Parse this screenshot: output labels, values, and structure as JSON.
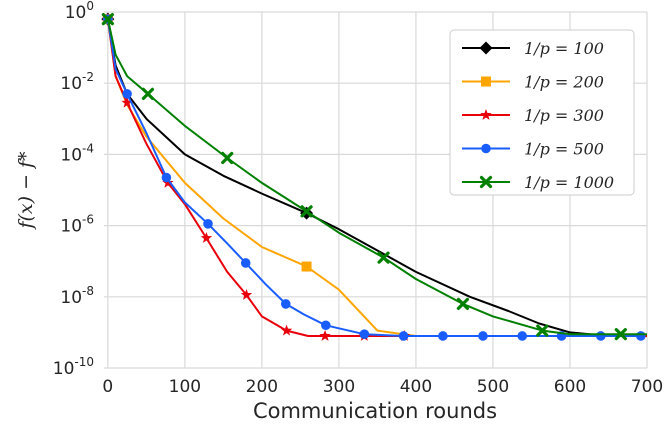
{
  "chart_data": {
    "type": "line",
    "xlabel": "Communication rounds",
    "ylabel": "f(x) − f*",
    "xlim": [
      -5,
      700
    ],
    "ylim_log10": [
      -10,
      0
    ],
    "y_scale": "log",
    "grid": true,
    "legend_position": "top-right",
    "x_ticks": [
      {
        "value": 0,
        "label": "0"
      },
      {
        "value": 100,
        "label": "100"
      },
      {
        "value": 200,
        "label": "200"
      },
      {
        "value": 300,
        "label": "300"
      },
      {
        "value": 400,
        "label": "400"
      },
      {
        "value": 500,
        "label": "500"
      },
      {
        "value": 600,
        "label": "600"
      },
      {
        "value": 700,
        "label": "700"
      }
    ],
    "y_ticks": [
      {
        "exp": 0,
        "base": "10",
        "sup": "0"
      },
      {
        "exp": -2,
        "base": "10",
        "sup": "-2"
      },
      {
        "exp": -4,
        "base": "10",
        "sup": "-4"
      },
      {
        "exp": -6,
        "base": "10",
        "sup": "-6"
      },
      {
        "exp": -8,
        "base": "10",
        "sup": "-8"
      },
      {
        "exp": -10,
        "base": "10",
        "sup": "-10"
      }
    ],
    "series": [
      {
        "name": "1/p = 100",
        "color": "#000000",
        "marker": "diamond",
        "x": [
          0,
          10,
          25,
          50,
          100,
          150,
          200,
          258,
          300,
          350,
          400,
          470,
          520,
          560,
          600,
          650,
          700
        ],
        "log10_y": [
          -0.2,
          -1.5,
          -2.3,
          -3.0,
          -4.0,
          -4.6,
          -5.1,
          -5.65,
          -6.1,
          -6.7,
          -7.3,
          -8.0,
          -8.4,
          -8.75,
          -9.0,
          -9.1,
          -9.1
        ],
        "marker_x": [
          0,
          258
        ],
        "marker_log10_y": [
          -0.2,
          -5.65
        ]
      },
      {
        "name": "1/p = 200",
        "color": "#ffa500",
        "marker": "square",
        "x": [
          0,
          10,
          25,
          50,
          100,
          150,
          200,
          258,
          300,
          350,
          400,
          450,
          500,
          700
        ],
        "log10_y": [
          -0.2,
          -1.8,
          -2.6,
          -3.5,
          -4.8,
          -5.8,
          -6.6,
          -7.15,
          -7.8,
          -8.95,
          -9.1,
          -9.1,
          -9.1,
          -9.1
        ],
        "marker_x": [
          0,
          258
        ],
        "marker_log10_y": [
          -0.2,
          -7.15
        ]
      },
      {
        "name": "1/p = 300",
        "color": "#e8000b",
        "marker": "star",
        "x": [
          0,
          10,
          25,
          50,
          78,
          100,
          128,
          155,
          180,
          200,
          232,
          260,
          282,
          333,
          385,
          700
        ],
        "log10_y": [
          -0.2,
          -1.8,
          -2.55,
          -3.7,
          -4.8,
          -5.4,
          -6.35,
          -7.3,
          -7.95,
          -8.55,
          -8.95,
          -9.1,
          -9.1,
          -9.1,
          -9.1,
          -9.1
        ],
        "marker_x": [
          0,
          25,
          78,
          128,
          180,
          232,
          282,
          333,
          385
        ],
        "marker_log10_y": [
          -0.2,
          -2.55,
          -4.8,
          -6.35,
          -7.95,
          -8.95,
          -9.1,
          -9.1,
          -9.1
        ]
      },
      {
        "name": "1/p = 500",
        "color": "#1a5dff",
        "marker": "circle",
        "x": [
          0,
          10,
          25,
          50,
          76,
          100,
          130,
          155,
          179,
          205,
          231,
          255,
          283,
          333,
          384,
          435,
          487,
          538,
          589,
          640,
          692
        ],
        "log10_y": [
          -0.2,
          -1.6,
          -2.3,
          -3.4,
          -4.65,
          -5.35,
          -5.95,
          -6.5,
          -7.05,
          -7.65,
          -8.2,
          -8.5,
          -8.8,
          -9.05,
          -9.1,
          -9.1,
          -9.1,
          -9.1,
          -9.1,
          -9.1,
          -9.1
        ],
        "marker_x": [
          0,
          25,
          76,
          130,
          179,
          231,
          283,
          333,
          384,
          435,
          487,
          538,
          589,
          640,
          692
        ],
        "marker_log10_y": [
          -0.2,
          -2.3,
          -4.65,
          -5.95,
          -7.05,
          -8.2,
          -8.8,
          -9.05,
          -9.1,
          -9.1,
          -9.1,
          -9.1,
          -9.1,
          -9.1,
          -9.1
        ]
      },
      {
        "name": "1/p = 1000",
        "color": "#008000",
        "marker": "x",
        "x": [
          0,
          10,
          25,
          52,
          100,
          155,
          200,
          258,
          300,
          358,
          400,
          461,
          500,
          564,
          600,
          666,
          700
        ],
        "log10_y": [
          -0.2,
          -1.2,
          -1.8,
          -2.3,
          -3.2,
          -4.1,
          -4.8,
          -5.6,
          -6.2,
          -6.9,
          -7.5,
          -8.2,
          -8.55,
          -8.95,
          -9.05,
          -9.05,
          -9.05
        ],
        "marker_x": [
          0,
          52,
          155,
          258,
          358,
          461,
          564,
          666
        ],
        "marker_log10_y": [
          -0.2,
          -2.3,
          -4.1,
          -5.6,
          -6.9,
          -8.2,
          -8.95,
          -9.05
        ]
      }
    ]
  }
}
